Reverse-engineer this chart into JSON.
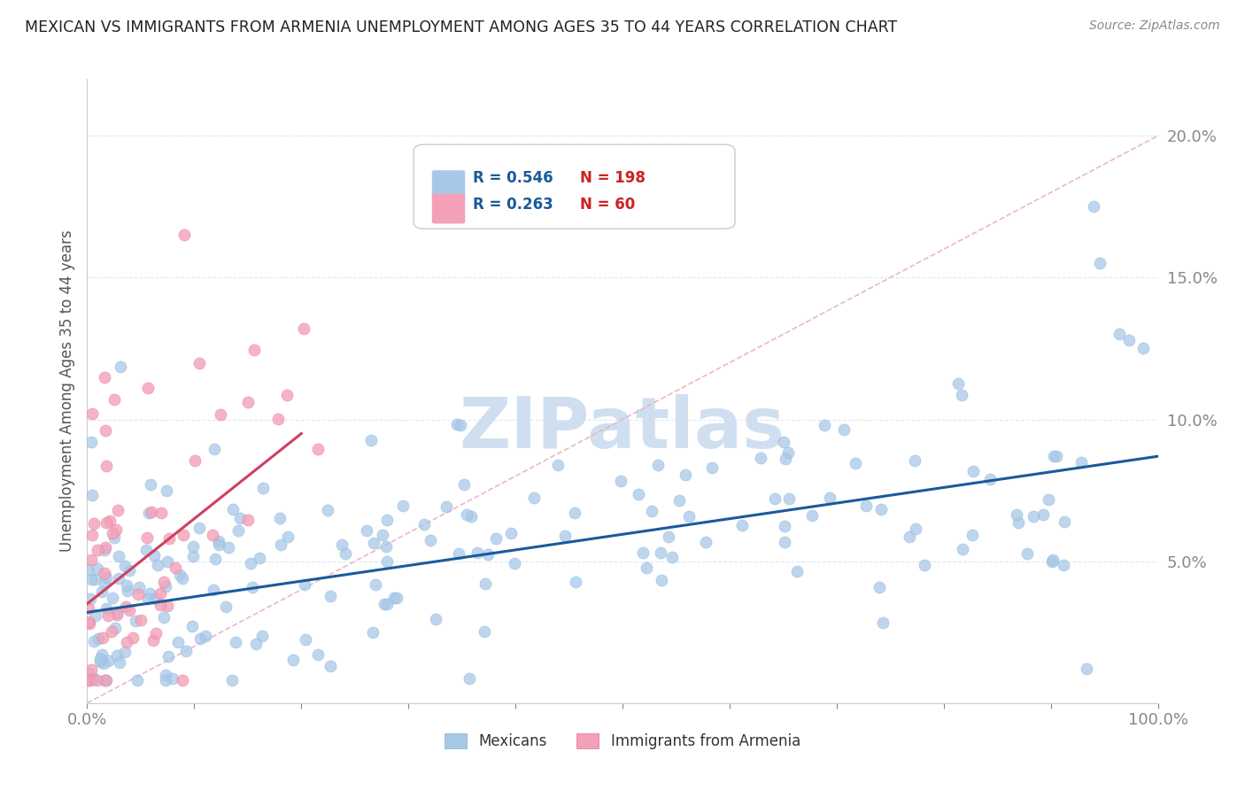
{
  "title": "MEXICAN VS IMMIGRANTS FROM ARMENIA UNEMPLOYMENT AMONG AGES 35 TO 44 YEARS CORRELATION CHART",
  "source": "Source: ZipAtlas.com",
  "ylabel": "Unemployment Among Ages 35 to 44 years",
  "xlim": [
    0,
    100
  ],
  "ylim": [
    0,
    22
  ],
  "blue_color": "#a8c8e8",
  "blue_edge_color": "#7aafd4",
  "pink_color": "#f4a0b8",
  "pink_edge_color": "#e07090",
  "blue_line_color": "#1a5a9a",
  "pink_line_color": "#d04060",
  "diag_line_color": "#e8b0c0",
  "R_blue": 0.546,
  "N_blue": 198,
  "R_pink": 0.263,
  "N_pink": 60,
  "watermark": "ZIPatlas",
  "watermark_color": "#d0dff0",
  "legend_label_blue": "Mexicans",
  "legend_label_pink": "Immigrants from Armenia",
  "background_color": "#ffffff",
  "grid_color": "#e0e8f0",
  "title_color": "#222222",
  "axis_label_color": "#555555",
  "tick_color": "#3a7abf",
  "blue_line_y0": 3.2,
  "blue_line_y100": 8.7,
  "pink_line_x0": 0,
  "pink_line_x1": 20,
  "pink_line_y0": 3.5,
  "pink_line_y1": 9.5
}
